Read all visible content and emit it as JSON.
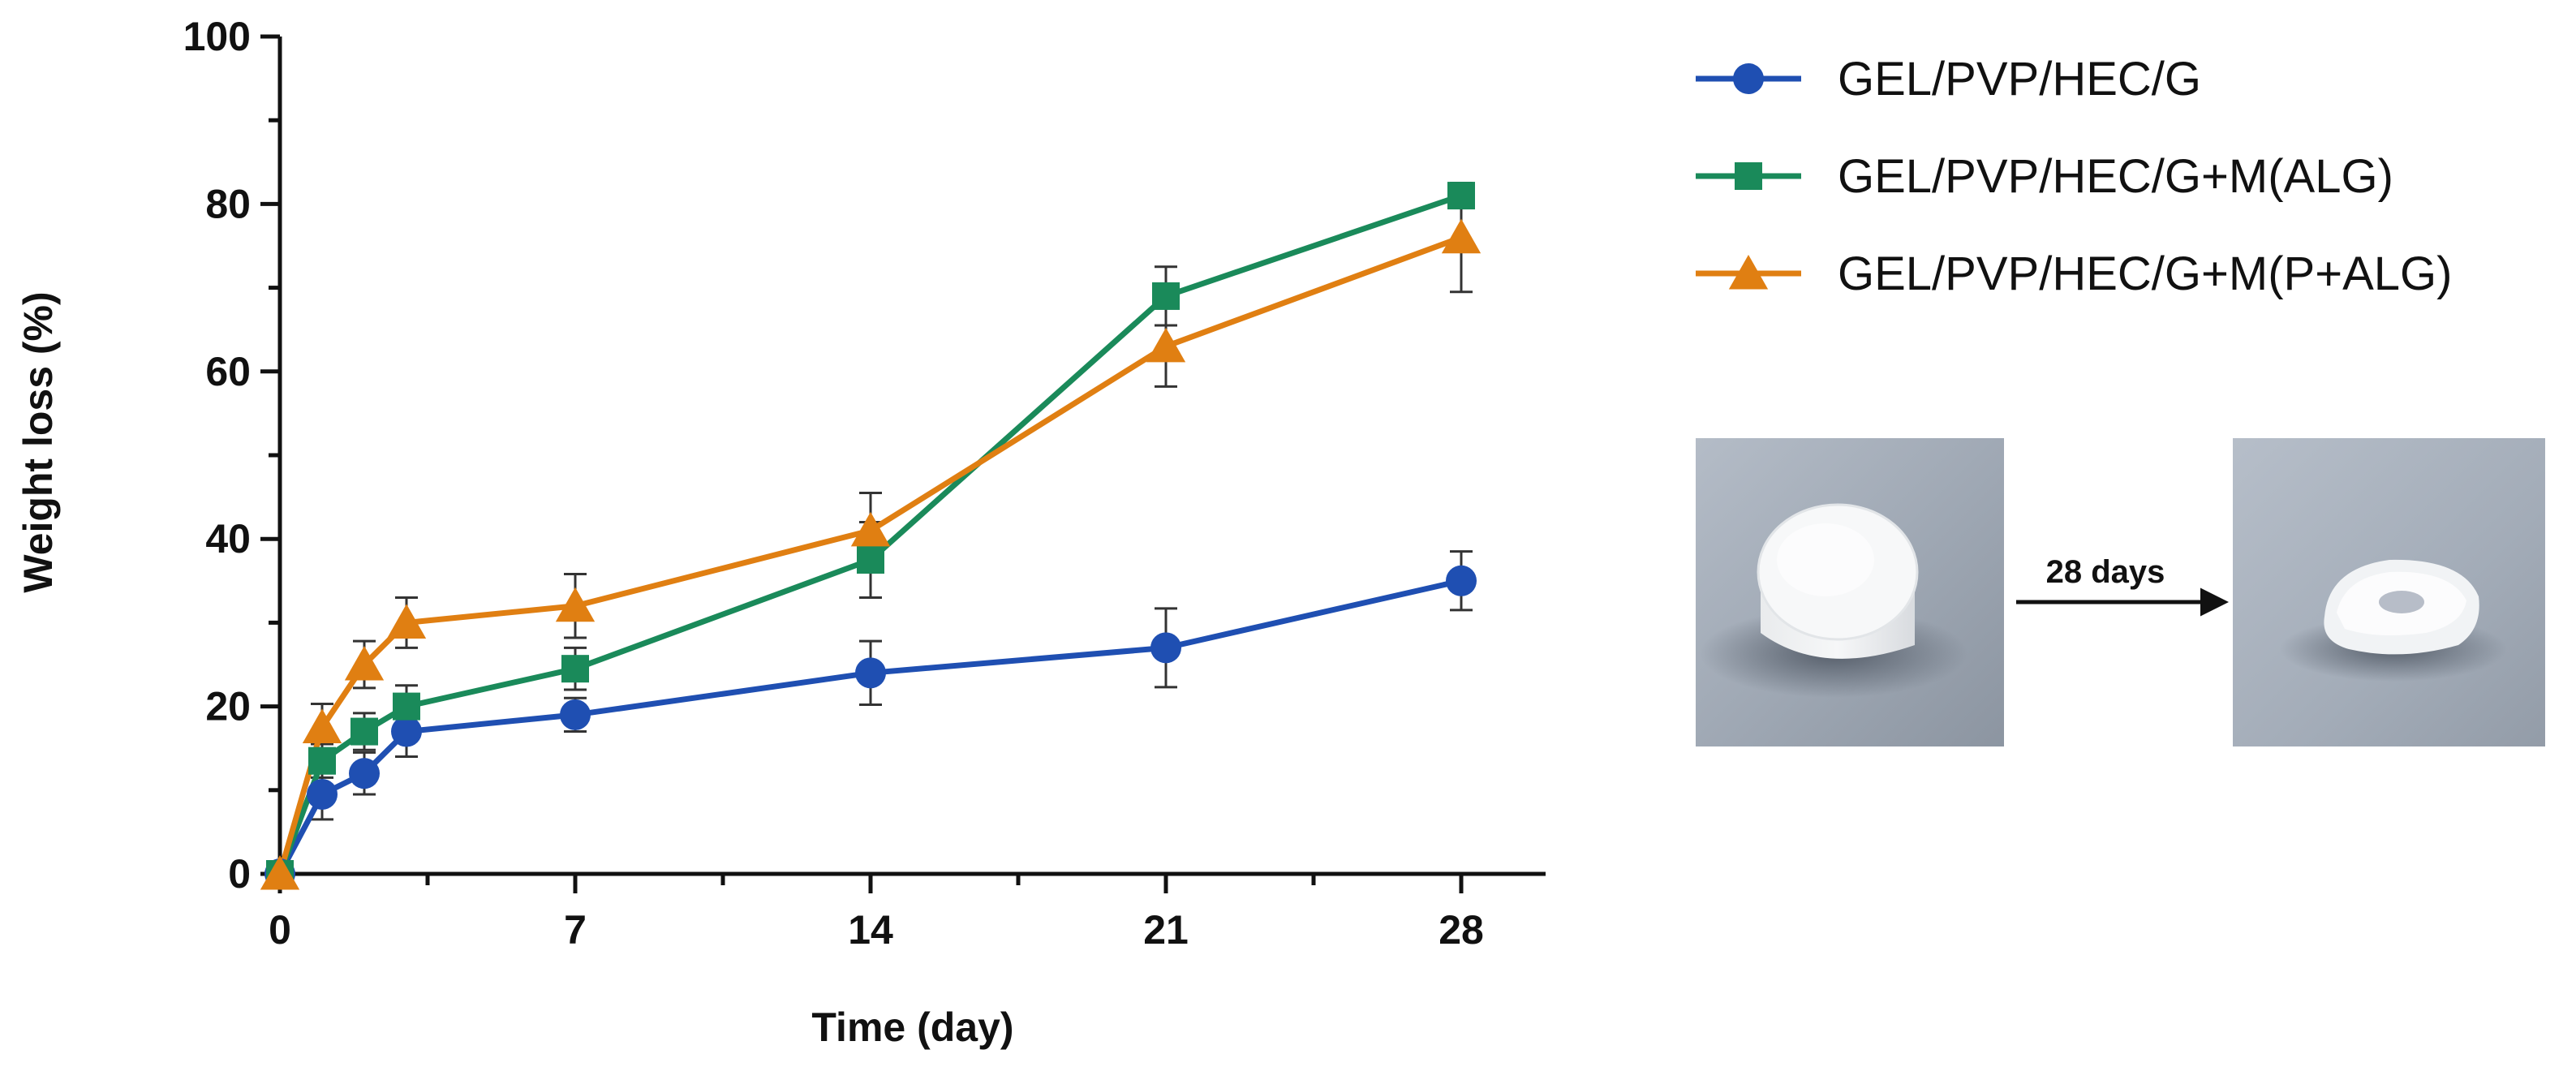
{
  "chart_data": {
    "type": "line",
    "title": "",
    "xlabel": "Time (day)",
    "ylabel": "Weight loss (%)",
    "xlim": [
      0,
      30
    ],
    "ylim": [
      0,
      100
    ],
    "x_ticks": [
      0,
      7,
      14,
      21,
      28
    ],
    "y_ticks": [
      0,
      20,
      40,
      60,
      80,
      100
    ],
    "x": [
      0,
      1,
      2,
      3,
      7,
      14,
      21,
      28
    ],
    "legend_position": "top-right",
    "series": [
      {
        "name": "GEL/PVP/HEC/G",
        "marker": "circle",
        "color": "#1f4fb2",
        "values": [
          0,
          9.5,
          12,
          17,
          19,
          24,
          27,
          35
        ],
        "error": [
          0,
          3,
          2.5,
          3,
          2,
          3.8,
          4.7,
          3.5
        ]
      },
      {
        "name": "GEL/PVP/HEC/G+M(ALG)",
        "marker": "square",
        "color": "#1a8a5a",
        "values": [
          0,
          13.5,
          17,
          20,
          24.5,
          37.5,
          69,
          81
        ],
        "error": [
          0,
          2,
          2.2,
          2.5,
          2.5,
          4.5,
          3.5,
          1.5
        ]
      },
      {
        "name": "GEL/PVP/HEC/G+M(P+ALG)",
        "marker": "triangle",
        "color": "#e07f12",
        "values": [
          0,
          17.5,
          25,
          30,
          32,
          41,
          63,
          76
        ],
        "error": [
          0,
          2.8,
          2.8,
          3,
          3.8,
          4.5,
          4.8,
          6.5
        ]
      }
    ]
  },
  "inset": {
    "arrow_label": "28 days",
    "before_photo": "hydrogel-disc-day-0",
    "after_photo": "hydrogel-disc-day-28"
  }
}
